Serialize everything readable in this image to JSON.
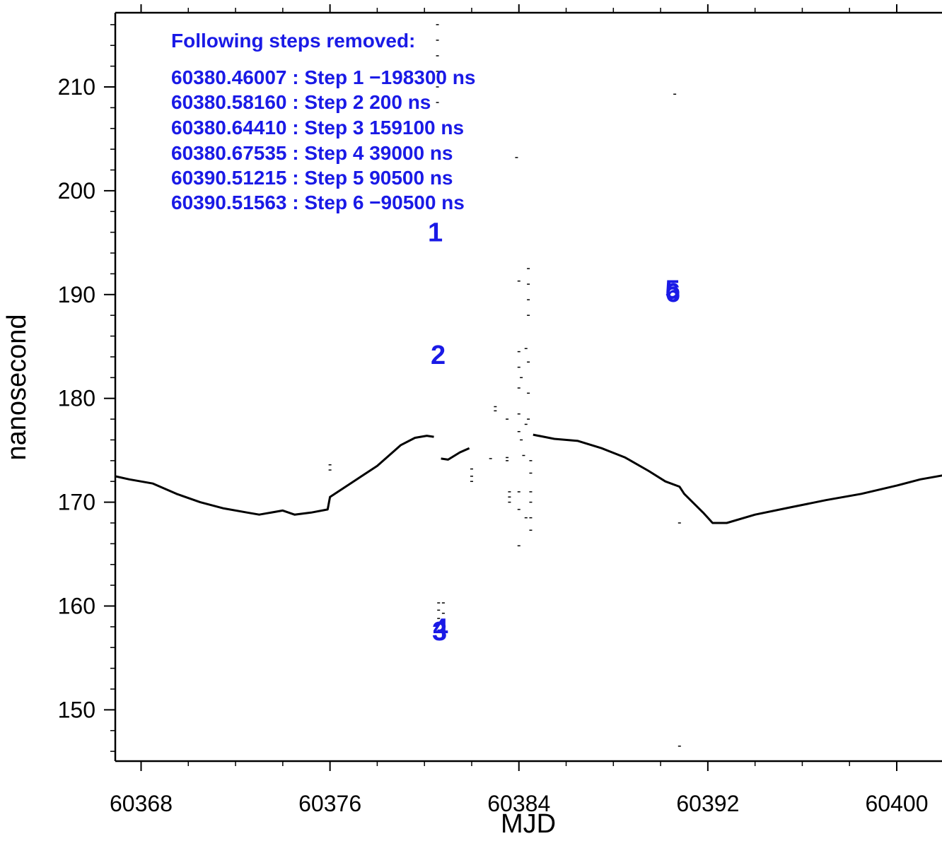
{
  "chart_data": {
    "type": "line",
    "title": "",
    "xlabel": "MJD",
    "ylabel": "nanosecond",
    "xlim": [
      60366.9,
      60402
    ],
    "ylim": [
      145,
      217.5
    ],
    "x_ticks": [
      60368,
      60376,
      60384,
      60392,
      60400
    ],
    "x_tick_labels": [
      "60368",
      "60376",
      "60384",
      "60392",
      "60400"
    ],
    "y_ticks": [
      150,
      160,
      170,
      180,
      190,
      200,
      210
    ],
    "y_tick_labels": [
      "150",
      "160",
      "170",
      "180",
      "190",
      "200",
      "210"
    ],
    "colors": {
      "series": "#000000",
      "annotation": "#1a1ae6"
    },
    "series": [
      {
        "x": [
          60366.9,
          60367.5,
          60368.5,
          60369.5,
          60370.5,
          60371.5,
          60372.5,
          60373.0,
          60374.0,
          60374.5,
          60375.2,
          60375.9,
          60376.0,
          60377.0,
          60378.0,
          60379.0,
          60379.6,
          60380.1,
          60380.4
        ],
        "y": [
          172.5,
          172.2,
          171.8,
          170.8,
          170.0,
          169.4,
          169.0,
          168.8,
          169.2,
          168.8,
          169.0,
          169.3,
          170.5,
          172.0,
          173.5,
          175.5,
          176.2,
          176.4,
          176.3
        ],
        "style": "line"
      },
      {
        "x": [
          60380.7,
          60381.0,
          60381.5,
          60381.9
        ],
        "y": [
          174.2,
          174.1,
          174.8,
          175.2
        ],
        "style": "line"
      },
      {
        "x": [
          60384.6,
          60385.5,
          60386.5,
          60387.5,
          60388.5,
          60389.5,
          60390.2,
          60390.8,
          60391.0,
          60391.8,
          60392.2,
          60392.8,
          60394.0,
          60395.5,
          60397.0,
          60398.5,
          60400.0,
          60401.0,
          60402.0
        ],
        "y": [
          176.5,
          176.1,
          175.9,
          175.2,
          174.3,
          173.0,
          172.0,
          171.5,
          170.8,
          169.0,
          168.0,
          168.0,
          168.8,
          169.5,
          170.2,
          170.8,
          171.6,
          172.2,
          172.6
        ],
        "style": "line"
      }
    ],
    "scatter_points": [
      [
        60380.55,
        216.0
      ],
      [
        60380.55,
        214.5
      ],
      [
        60380.55,
        213.0
      ],
      [
        60380.55,
        211.5
      ],
      [
        60380.55,
        210.0
      ],
      [
        60380.55,
        208.5
      ],
      [
        60382.0,
        172.5
      ],
      [
        60382.0,
        173.2
      ],
      [
        60382.0,
        172.0
      ],
      [
        60376.0,
        173.6
      ],
      [
        60376.0,
        173.1
      ],
      [
        60382.8,
        174.2
      ],
      [
        60383.0,
        179.2
      ],
      [
        60383.0,
        178.8
      ],
      [
        60383.5,
        178.0
      ],
      [
        60383.5,
        174.0
      ],
      [
        60383.5,
        174.3
      ],
      [
        60383.6,
        171.0
      ],
      [
        60383.6,
        170.5
      ],
      [
        60383.6,
        170.0
      ],
      [
        60383.9,
        203.2
      ],
      [
        60384.0,
        191.3
      ],
      [
        60384.0,
        184.5
      ],
      [
        60384.0,
        183.0
      ],
      [
        60384.0,
        181.0
      ],
      [
        60384.0,
        178.5
      ],
      [
        60384.0,
        176.8
      ],
      [
        60384.0,
        171.0
      ],
      [
        60384.0,
        169.3
      ],
      [
        60384.0,
        165.8
      ],
      [
        60384.1,
        182.0
      ],
      [
        60384.1,
        176.0
      ],
      [
        60384.2,
        174.5
      ],
      [
        60384.3,
        184.8
      ],
      [
        60384.3,
        177.5
      ],
      [
        60384.3,
        168.5
      ],
      [
        60384.4,
        192.5
      ],
      [
        60384.4,
        191.0
      ],
      [
        60384.4,
        189.5
      ],
      [
        60384.4,
        188.0
      ],
      [
        60384.4,
        183.5
      ],
      [
        60384.4,
        180.5
      ],
      [
        60384.4,
        178.0
      ],
      [
        60384.5,
        174.0
      ],
      [
        60384.5,
        172.8
      ],
      [
        60384.5,
        171.0
      ],
      [
        60384.5,
        170.0
      ],
      [
        60384.5,
        168.5
      ],
      [
        60384.5,
        167.3
      ],
      [
        60380.6,
        160.3
      ],
      [
        60380.6,
        159.6
      ],
      [
        60380.6,
        158.8
      ],
      [
        60380.8,
        160.3
      ],
      [
        60380.8,
        159.3
      ],
      [
        60390.6,
        209.3
      ],
      [
        60390.8,
        168.0
      ],
      [
        60390.8,
        146.5
      ]
    ],
    "step_markers": [
      {
        "label": "1",
        "x": 60380.46,
        "y": 196.0
      },
      {
        "label": "2",
        "x": 60380.58,
        "y": 184.2
      },
      {
        "label": "3",
        "x": 60380.64,
        "y": 157.6
      },
      {
        "label": "4",
        "x": 60380.68,
        "y": 157.9
      },
      {
        "label": "5",
        "x": 60390.51,
        "y": 190.5
      },
      {
        "label": "6",
        "x": 60390.52,
        "y": 190.2
      }
    ],
    "annotation_lines": [
      "Following steps removed:",
      "60380.46007 : Step 1 −198300 ns",
      "60380.58160 : Step 2 200 ns",
      "60380.64410 : Step 3 159100 ns",
      "60380.67535 : Step 4 39000 ns",
      "60390.51215 : Step 5 90500 ns",
      "60390.51563 : Step 6 −90500 ns"
    ]
  }
}
